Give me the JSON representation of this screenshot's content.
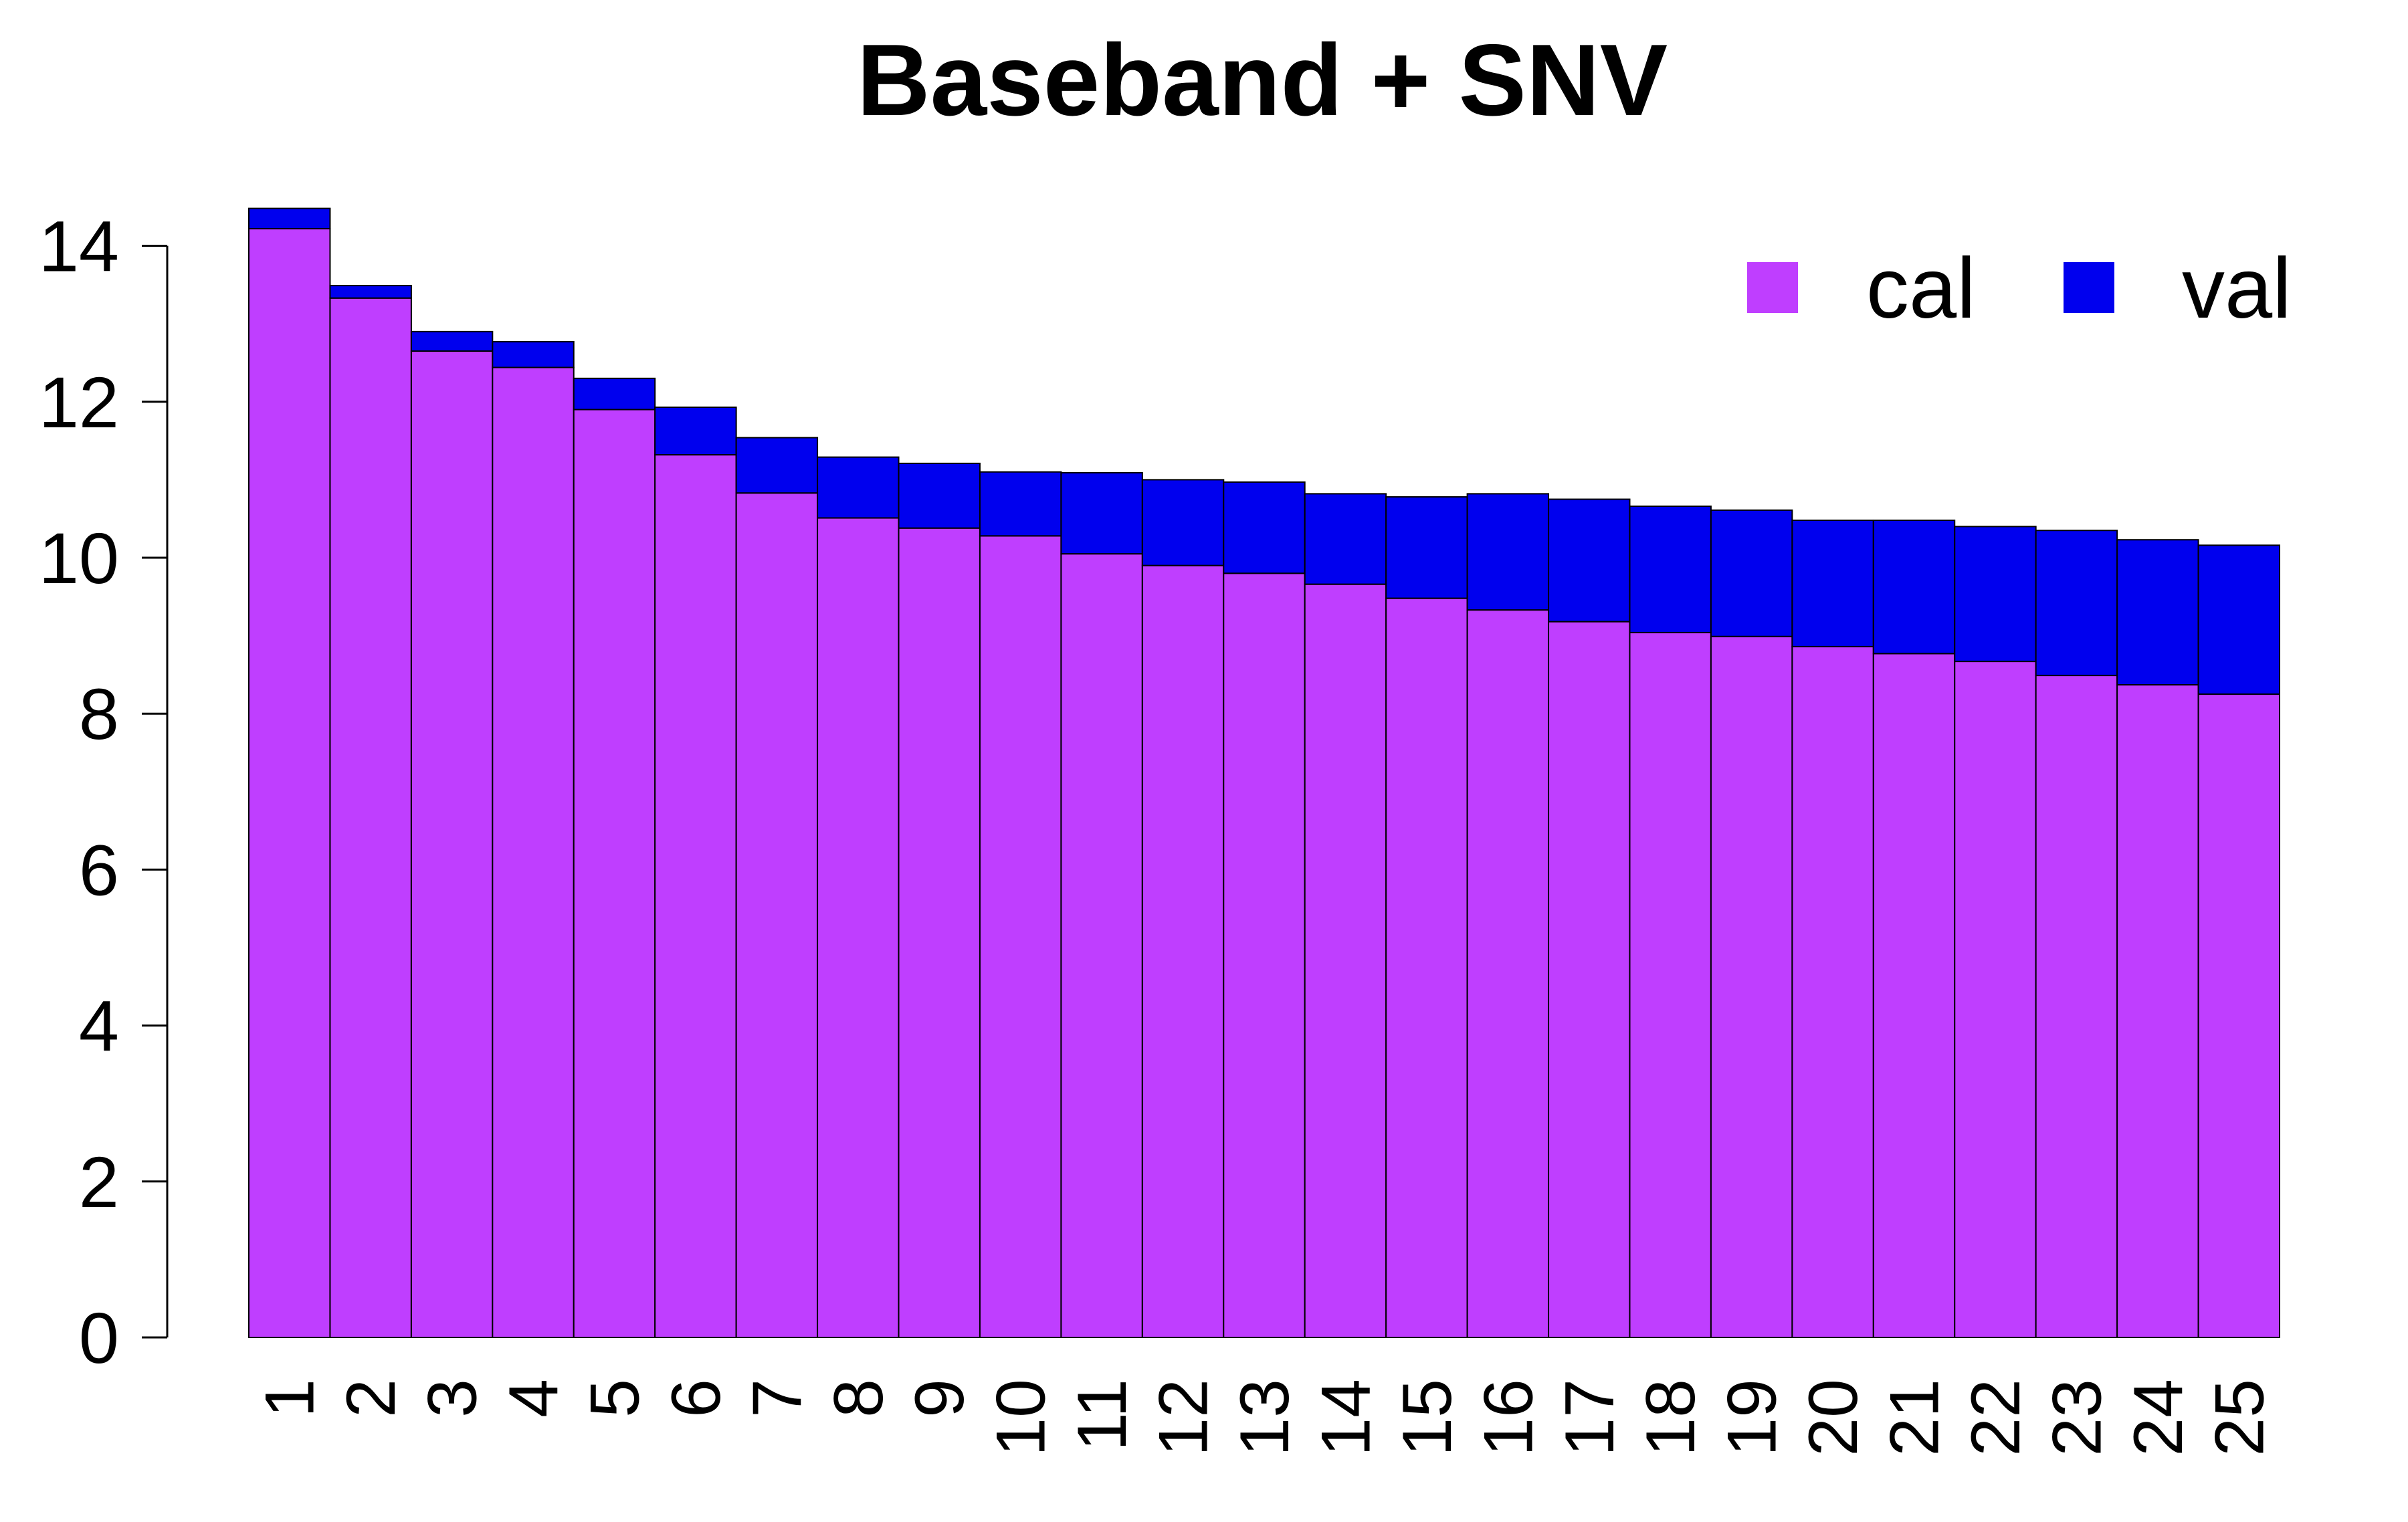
{
  "chart_data": {
    "type": "bar",
    "stacked": true,
    "title": "Baseband + SNV",
    "xlabel": "",
    "ylabel": "",
    "categories": [
      "1",
      "2",
      "3",
      "4",
      "5",
      "6",
      "7",
      "8",
      "9",
      "10",
      "11",
      "12",
      "13",
      "14",
      "15",
      "16",
      "17",
      "18",
      "19",
      "20",
      "21",
      "22",
      "23",
      "24",
      "25"
    ],
    "series": [
      {
        "name": "cal",
        "color": "#bf3eff",
        "values": [
          14.22,
          13.33,
          12.65,
          12.44,
          11.9,
          11.32,
          10.83,
          10.51,
          10.38,
          10.28,
          10.05,
          9.9,
          9.8,
          9.66,
          9.48,
          9.33,
          9.18,
          9.04,
          8.99,
          8.86,
          8.77,
          8.67,
          8.49,
          8.37,
          8.25
        ]
      },
      {
        "name": "val",
        "color": "#0000ee",
        "values": [
          0.26,
          0.16,
          0.25,
          0.33,
          0.4,
          0.61,
          0.71,
          0.78,
          0.83,
          0.82,
          1.04,
          1.1,
          1.17,
          1.16,
          1.3,
          1.49,
          1.57,
          1.62,
          1.62,
          1.62,
          1.71,
          1.73,
          1.86,
          1.86,
          1.91
        ]
      }
    ],
    "ylim": [
      0,
      14.5
    ],
    "yticks": [
      0,
      2,
      4,
      6,
      8,
      10,
      12,
      14
    ],
    "grid": false,
    "legend": {
      "placement": "top-right",
      "entries": [
        {
          "label": "cal",
          "color": "#bf3eff"
        },
        {
          "label": "val",
          "color": "#0000ee"
        }
      ]
    }
  }
}
